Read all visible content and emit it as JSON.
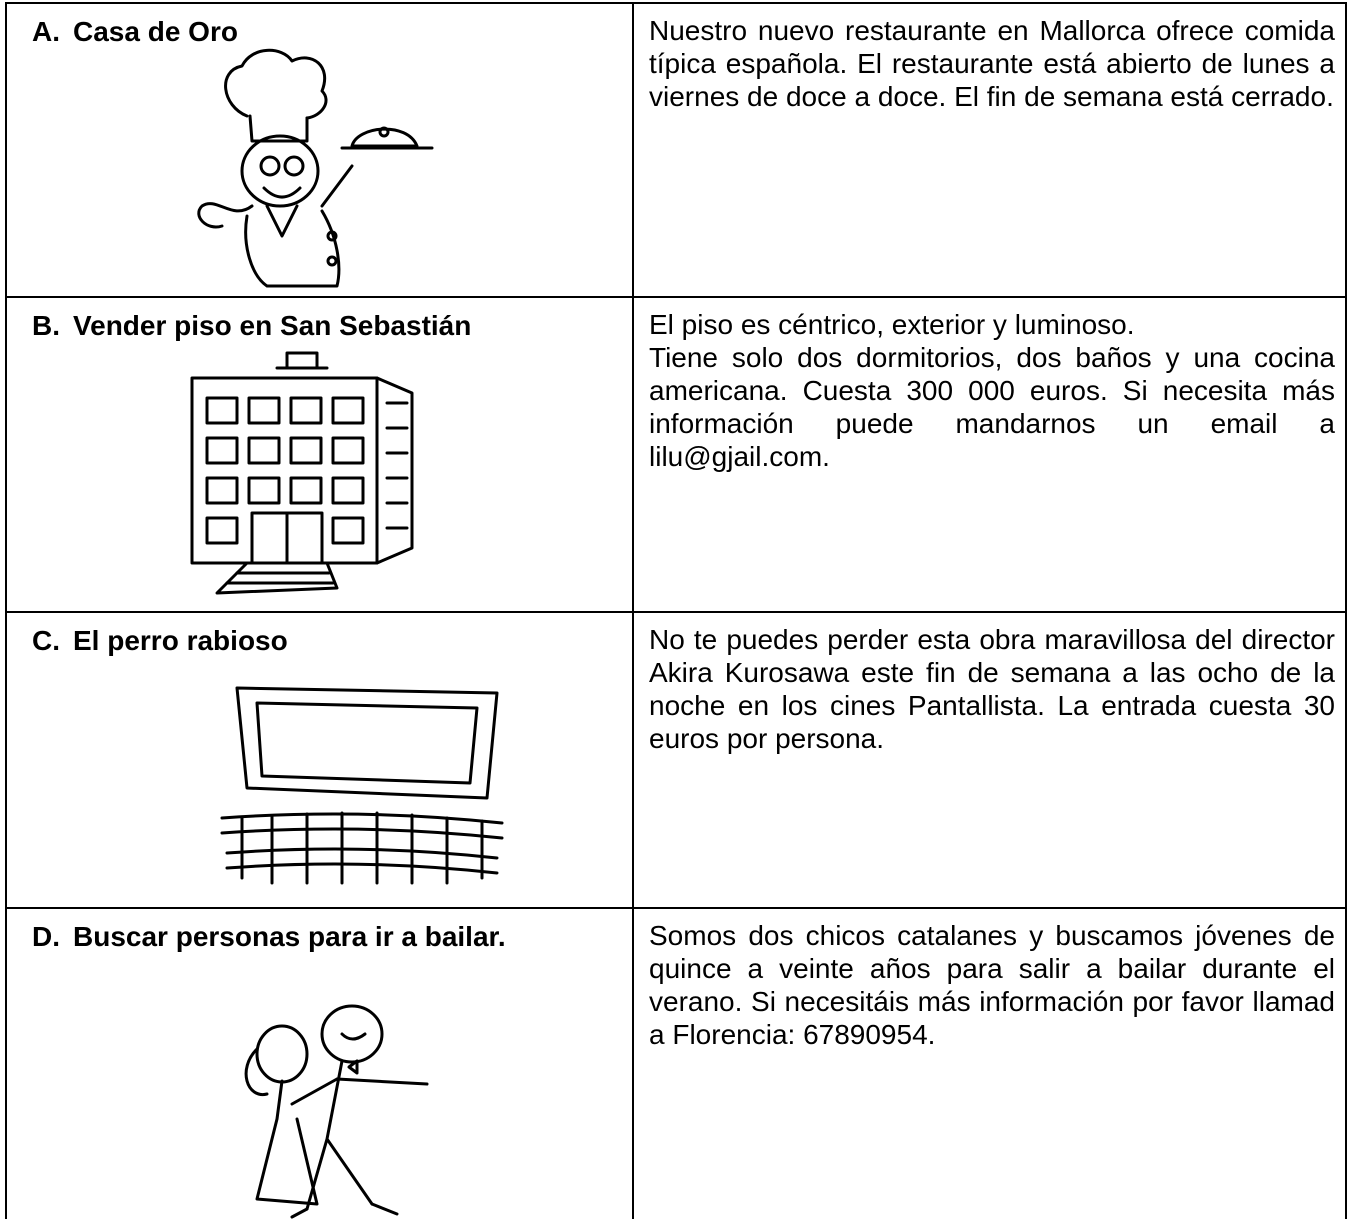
{
  "table": {
    "rows": [
      {
        "letter": "A.",
        "title": "Casa de Oro",
        "paragraphs": [
          "Nuestro nuevo restaurante en Mallorca ofrece comida típica española. El restaurante está abierto de lunes a viernes de doce a doce. El fin de semana está cerrado."
        ]
      },
      {
        "letter": "B.",
        "title": "Vender piso en San Sebastián",
        "paragraphs": [
          "El piso es céntrico, exterior y luminoso.",
          "Tiene solo dos dormitorios, dos baños y una cocina americana. Cuesta 300 000 euros. Si necesita más información puede mandarnos un email a lilu@gjail.com."
        ]
      },
      {
        "letter": "C.",
        "title": "El perro rabioso",
        "paragraphs": [
          "No te puedes perder esta obra maravillosa del director Akira Kurosawa este fin de semana a las ocho de la noche en los cines Pantallista. La entrada cuesta 30 euros por persona."
        ]
      },
      {
        "letter": "D.",
        "title": "Buscar personas para ir a bailar.",
        "paragraphs": [
          "Somos dos chicos catalanes y buscamos jóvenes de quince a veinte años para salir a bailar durante el verano. Si necesitáis más información por favor llamad a Florencia: 67890954."
        ]
      }
    ]
  }
}
